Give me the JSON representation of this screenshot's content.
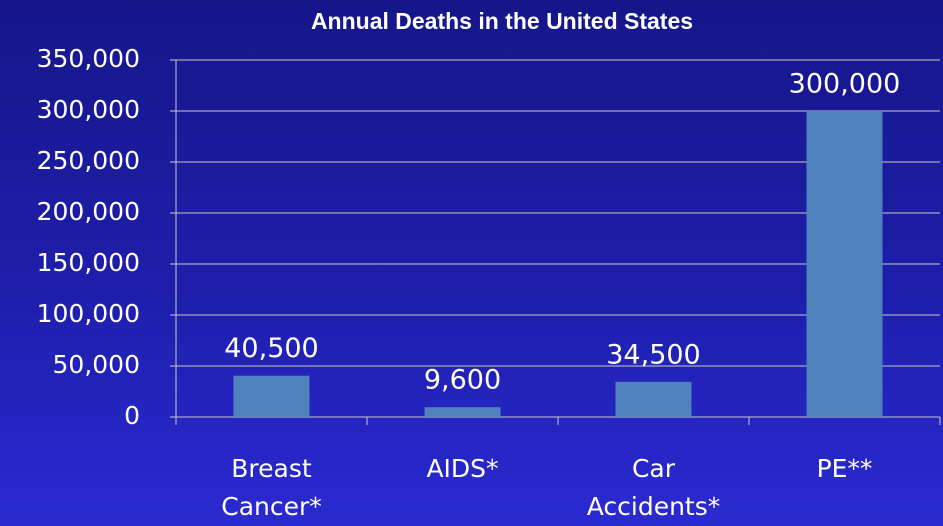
{
  "chart_data": {
    "type": "bar",
    "title": "Annual Deaths in the United States",
    "categories": [
      "Breast Cancer*",
      "AIDS*",
      "Car Accidents*",
      "PE**"
    ],
    "values": [
      40500,
      9600,
      34500,
      300000
    ],
    "value_labels": [
      "40,500",
      "9,600",
      "34,500",
      "300,000"
    ],
    "color": "#4f81bd",
    "ylim": [
      0,
      350000
    ],
    "yticks": [
      0,
      {
        "value": 50000,
        "label": "50,000"
      },
      {
        "value": 100000,
        "label": "100,000"
      },
      {
        "value": 150000,
        "label": "150,000"
      },
      {
        "value": 200000,
        "label": "200,000"
      },
      {
        "value": 250000,
        "label": "250,000"
      },
      {
        "value": 300000,
        "label": "300,000"
      },
      {
        "value": 350000,
        "label": "350,000"
      }
    ],
    "grid": true
  }
}
